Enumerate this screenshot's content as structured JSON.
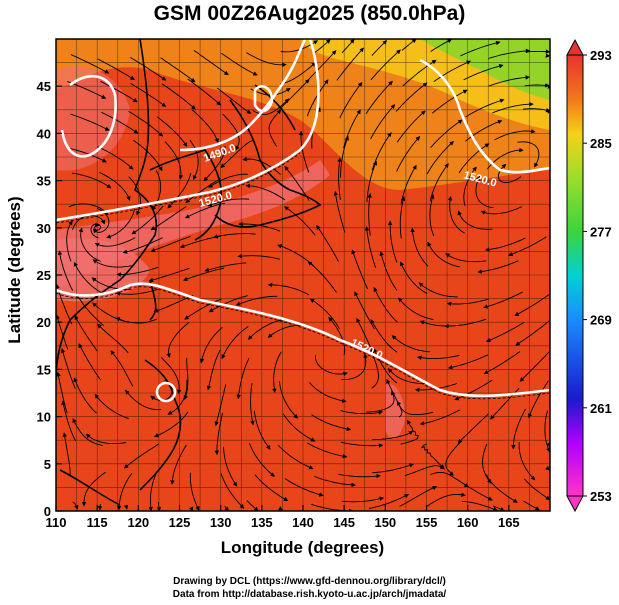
{
  "title": "GSM 00Z26Aug2025 (850.0hPa)",
  "axes": {
    "xlabel": "Longitude (degrees)",
    "ylabel": "Latitude  (degrees)",
    "xticks": [
      "110",
      "115",
      "120",
      "125",
      "130",
      "135",
      "140",
      "145",
      "150",
      "155",
      "160",
      "165"
    ],
    "yticks": [
      "0",
      "5",
      "10",
      "15",
      "20",
      "25",
      "30",
      "35",
      "40",
      "45"
    ],
    "xlim": [
      110,
      170
    ],
    "ylim": [
      0,
      50
    ]
  },
  "colorbar": {
    "ticks": [
      "293",
      "285",
      "277",
      "269",
      "261",
      "253"
    ],
    "range": [
      253,
      293
    ]
  },
  "contour_labels": [
    "1490.0",
    "1520.0",
    "1520.0",
    "1520.0"
  ],
  "credits": {
    "line1": "Drawing by DCL (https://www.gfd-dennou.org/library/dcl/)",
    "line2": "Data from http://database.rish.kyoto-u.ac.jp/arch/jmadata/"
  },
  "colors": {
    "warm": "#e8401a",
    "hot": "#f06a6a",
    "mid": "#f29a1a",
    "cool": "#6cd63a"
  }
}
